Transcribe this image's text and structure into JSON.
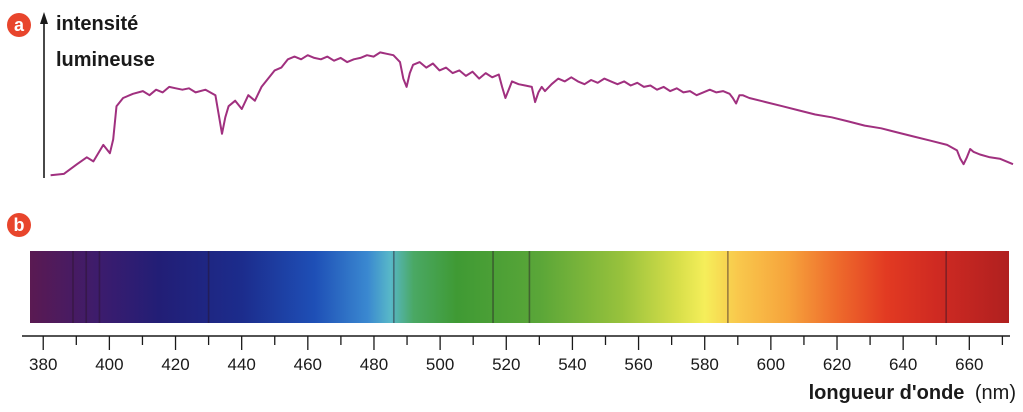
{
  "badges": {
    "a": "a",
    "b": "b"
  },
  "colors": {
    "badge": "#e8452c",
    "curve": "#a0307f",
    "axis": "#1a1a1a"
  },
  "chart_data": [
    {
      "type": "line",
      "panel": "a",
      "title": "",
      "ylabel_line1": "intensité",
      "ylabel_line2": "lumineuse",
      "xlabel": "longueur d'onde",
      "xlim": [
        380,
        670
      ],
      "ylim": [
        0,
        100
      ],
      "y_scale": "relative intensity (no ticks shown)",
      "grid": false,
      "x": [
        378,
        382,
        386,
        389,
        391,
        393,
        394,
        396,
        397,
        398,
        400,
        403,
        406,
        408,
        410,
        412,
        414,
        416,
        418,
        420,
        422,
        425,
        428,
        429,
        430,
        431,
        432,
        434,
        436,
        438,
        440,
        442,
        444,
        446,
        448,
        450,
        452,
        454,
        456,
        458,
        460,
        462,
        464,
        466,
        468,
        470,
        472,
        474,
        476,
        478,
        480,
        482,
        484,
        485,
        486,
        487,
        488,
        490,
        492,
        494,
        496,
        498,
        500,
        502,
        504,
        506,
        508,
        510,
        512,
        514,
        515,
        516,
        517,
        518,
        520,
        522,
        524,
        525,
        526,
        527,
        528,
        530,
        532,
        534,
        536,
        538,
        540,
        542,
        544,
        546,
        548,
        550,
        552,
        554,
        556,
        558,
        560,
        562,
        564,
        566,
        568,
        570,
        572,
        574,
        576,
        578,
        580,
        582,
        584,
        585,
        586,
        587,
        588,
        590,
        595,
        600,
        605,
        610,
        615,
        620,
        625,
        630,
        635,
        640,
        645,
        650,
        653,
        654,
        655,
        656,
        657,
        658,
        660,
        663,
        666,
        668,
        670
      ],
      "y": [
        2,
        3,
        10,
        15,
        12,
        20,
        24,
        18,
        28,
        52,
        58,
        61,
        63,
        60,
        64,
        62,
        66,
        65,
        64,
        65,
        62,
        64,
        60,
        46,
        32,
        44,
        52,
        56,
        50,
        60,
        56,
        66,
        72,
        78,
        80,
        86,
        88,
        86,
        89,
        87,
        86,
        88,
        85,
        87,
        84,
        86,
        87,
        89,
        88,
        91,
        90,
        89,
        84,
        72,
        66,
        76,
        82,
        84,
        80,
        83,
        78,
        80,
        76,
        78,
        74,
        77,
        72,
        76,
        73,
        75,
        66,
        58,
        64,
        70,
        68,
        67,
        66,
        55,
        62,
        66,
        63,
        68,
        72,
        70,
        73,
        70,
        68,
        71,
        69,
        72,
        70,
        68,
        70,
        67,
        69,
        66,
        67,
        64,
        66,
        63,
        65,
        62,
        63,
        60,
        62,
        64,
        62,
        63,
        61,
        58,
        54,
        60,
        60,
        58,
        55,
        52,
        49,
        46,
        44,
        41,
        38,
        36,
        33,
        30,
        27,
        24,
        20,
        14,
        10,
        15,
        21,
        19,
        17,
        15,
        14,
        12,
        10
      ]
    },
    {
      "type": "heatmap",
      "panel": "b",
      "description_type": "spectrum band",
      "xlabel": "longueur d'onde",
      "xunit": "(nm)",
      "xlim": [
        376,
        672
      ],
      "ticks": [
        380,
        400,
        420,
        440,
        460,
        480,
        500,
        520,
        540,
        560,
        580,
        600,
        620,
        640,
        660
      ],
      "tick_labels": [
        "380",
        "400",
        "420",
        "440",
        "460",
        "480",
        "500",
        "520",
        "540",
        "560",
        "580",
        "600",
        "620",
        "640",
        "660"
      ],
      "minor_tick_step": 10,
      "color_stops": [
        {
          "nm": 376,
          "color": "#5a1a52"
        },
        {
          "nm": 398,
          "color": "#3b1c6e"
        },
        {
          "nm": 415,
          "color": "#221e76"
        },
        {
          "nm": 440,
          "color": "#1c2c8c"
        },
        {
          "nm": 462,
          "color": "#1e4fb6"
        },
        {
          "nm": 478,
          "color": "#3a88d0"
        },
        {
          "nm": 485,
          "color": "#58b8c8"
        },
        {
          "nm": 492,
          "color": "#4aa864"
        },
        {
          "nm": 505,
          "color": "#3f9a34"
        },
        {
          "nm": 530,
          "color": "#5aa638"
        },
        {
          "nm": 555,
          "color": "#98c23c"
        },
        {
          "nm": 572,
          "color": "#d8df4a"
        },
        {
          "nm": 580,
          "color": "#f5ee5a"
        },
        {
          "nm": 590,
          "color": "#f9c84c"
        },
        {
          "nm": 605,
          "color": "#f6a43c"
        },
        {
          "nm": 620,
          "color": "#ee6b2c"
        },
        {
          "nm": 635,
          "color": "#e23a22"
        },
        {
          "nm": 650,
          "color": "#cf2a22"
        },
        {
          "nm": 672,
          "color": "#b02020"
        }
      ],
      "absorption_lines_nm": [
        389,
        393,
        397,
        430,
        486,
        516,
        527,
        587,
        653
      ]
    }
  ]
}
